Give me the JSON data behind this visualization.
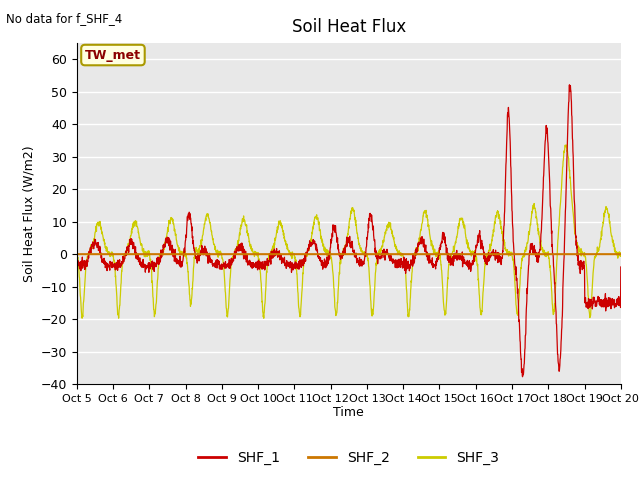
{
  "title": "Soil Heat Flux",
  "ylabel": "Soil Heat Flux (W/m2)",
  "xlabel": "Time",
  "note": "No data for f_SHF_4",
  "annotation": "TW_met",
  "ylim": [
    -40,
    65
  ],
  "yticks": [
    -40,
    -30,
    -20,
    -10,
    0,
    10,
    20,
    30,
    40,
    50,
    60
  ],
  "xticklabels": [
    "Oct 5",
    "Oct 6",
    "Oct 7",
    "Oct 8",
    "Oct 9",
    "Oct 10",
    "Oct 11",
    "Oct 12",
    "Oct 13",
    "Oct 14",
    "Oct 15",
    "Oct 16",
    "Oct 17",
    "Oct 18",
    "Oct 19",
    "Oct 20"
  ],
  "color_SHF1": "#cc0000",
  "color_SHF2": "#cc7700",
  "color_SHF3": "#cccc00",
  "bg_color": "#e8e8e8",
  "legend_labels": [
    "SHF_1",
    "SHF_2",
    "SHF_3"
  ]
}
